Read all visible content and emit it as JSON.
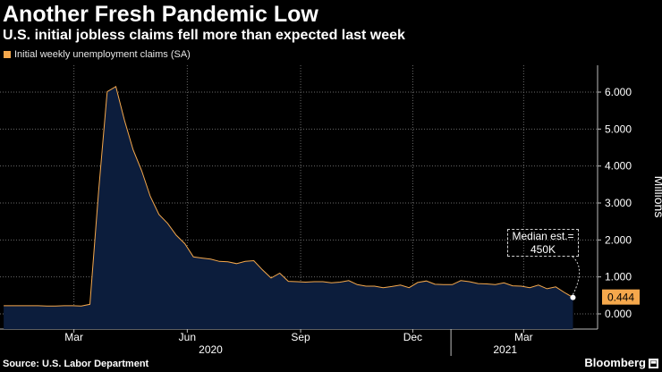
{
  "header": {
    "title": "Another Fresh Pandemic Low",
    "subtitle": "U.S. initial jobless claims fell more than expected last week"
  },
  "footer": {
    "source": "Source: U.S. Labor Department",
    "brand": "Bloomberg",
    "brand_icon": "bloomberg-icon"
  },
  "colors": {
    "accent": "#f5a84c",
    "area_fill": "#0c1d3c",
    "background": "#000000",
    "grid": "#6a6a6a"
  },
  "chart_data": {
    "type": "area",
    "title": "Another Fresh Pandemic Low",
    "subtitle": "U.S. initial jobless claims fell more than expected last week",
    "ylabel": "Millions",
    "xlabel": "",
    "ylim": [
      0,
      6.5
    ],
    "grid": true,
    "legend_position": "top-left",
    "yticks": [
      "0.000",
      "1.000",
      "2.000",
      "3.000",
      "4.000",
      "5.000",
      "6.000"
    ],
    "xticks": [
      {
        "label": "Mar",
        "date": "2020-03-01"
      },
      {
        "label": "Jun",
        "date": "2020-06-01"
      },
      {
        "label": "Sep",
        "date": "2020-09-01"
      },
      {
        "label": "Dec",
        "date": "2020-12-01"
      },
      {
        "label": "Mar",
        "date": "2021-03-01"
      }
    ],
    "year_labels": [
      {
        "label": "2020",
        "date": "2020-06-20"
      },
      {
        "label": "2021",
        "date": "2021-02-14"
      }
    ],
    "year_divider_date": "2021-01-01",
    "x_range": [
      "2020-01-01",
      "2021-04-30"
    ],
    "series": [
      {
        "name": "Initial weekly unemployment claims (SA)",
        "x": [
          "2020-01-04",
          "2020-01-11",
          "2020-01-18",
          "2020-01-25",
          "2020-02-01",
          "2020-02-08",
          "2020-02-15",
          "2020-02-22",
          "2020-02-29",
          "2020-03-07",
          "2020-03-14",
          "2020-03-21",
          "2020-03-28",
          "2020-04-04",
          "2020-04-11",
          "2020-04-18",
          "2020-04-25",
          "2020-05-02",
          "2020-05-09",
          "2020-05-16",
          "2020-05-23",
          "2020-05-30",
          "2020-06-06",
          "2020-06-13",
          "2020-06-20",
          "2020-06-27",
          "2020-07-04",
          "2020-07-11",
          "2020-07-18",
          "2020-07-25",
          "2020-08-01",
          "2020-08-08",
          "2020-08-15",
          "2020-08-22",
          "2020-08-29",
          "2020-09-05",
          "2020-09-12",
          "2020-09-19",
          "2020-09-26",
          "2020-10-03",
          "2020-10-10",
          "2020-10-17",
          "2020-10-24",
          "2020-10-31",
          "2020-11-07",
          "2020-11-14",
          "2020-11-21",
          "2020-11-28",
          "2020-12-05",
          "2020-12-12",
          "2020-12-19",
          "2020-12-26",
          "2021-01-02",
          "2021-01-09",
          "2021-01-16",
          "2021-01-23",
          "2021-01-30",
          "2021-02-06",
          "2021-02-13",
          "2021-02-20",
          "2021-02-27",
          "2021-03-06",
          "2021-03-13",
          "2021-03-20",
          "2021-03-27",
          "2021-04-03",
          "2021-04-10"
        ],
        "values": [
          0.22,
          0.22,
          0.22,
          0.22,
          0.22,
          0.21,
          0.21,
          0.22,
          0.22,
          0.21,
          0.26,
          3.31,
          6.01,
          6.15,
          5.24,
          4.44,
          3.87,
          3.18,
          2.69,
          2.45,
          2.13,
          1.9,
          1.54,
          1.51,
          1.48,
          1.42,
          1.41,
          1.36,
          1.42,
          1.44,
          1.19,
          0.97,
          1.1,
          0.88,
          0.87,
          0.86,
          0.87,
          0.87,
          0.84,
          0.86,
          0.9,
          0.79,
          0.75,
          0.75,
          0.71,
          0.74,
          0.78,
          0.71,
          0.85,
          0.89,
          0.8,
          0.79,
          0.79,
          0.9,
          0.87,
          0.82,
          0.81,
          0.79,
          0.84,
          0.76,
          0.75,
          0.71,
          0.78,
          0.68,
          0.73,
          0.58,
          0.444
        ]
      }
    ],
    "last_value_label": "0.444",
    "annotations": [
      {
        "label": "Median est.=",
        "label2": "450K",
        "date": "2021-04-10",
        "value": 0.45
      }
    ]
  }
}
